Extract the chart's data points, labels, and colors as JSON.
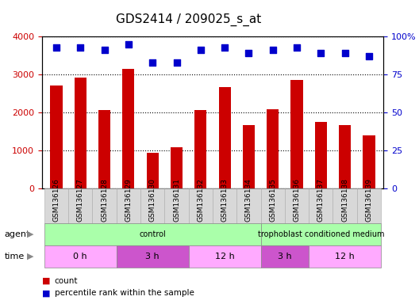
{
  "title": "GDS2414 / 209025_s_at",
  "samples": [
    "GSM136126",
    "GSM136127",
    "GSM136128",
    "GSM136129",
    "GSM136130",
    "GSM136131",
    "GSM136132",
    "GSM136133",
    "GSM136134",
    "GSM136135",
    "GSM136136",
    "GSM136137",
    "GSM136138",
    "GSM136139"
  ],
  "counts": [
    2700,
    2920,
    2060,
    3150,
    930,
    1080,
    2060,
    2660,
    1670,
    2080,
    2860,
    1760,
    1660,
    1390
  ],
  "percentile_ranks": [
    93,
    93,
    91,
    95,
    83,
    83,
    91,
    93,
    89,
    91,
    93,
    89,
    89,
    87
  ],
  "bar_color": "#cc0000",
  "dot_color": "#0000cc",
  "ylim_left": [
    0,
    4000
  ],
  "ylim_right": [
    0,
    100
  ],
  "yticks_left": [
    0,
    1000,
    2000,
    3000,
    4000
  ],
  "ytick_labels_left": [
    "0",
    "1000",
    "2000",
    "3000",
    "4000"
  ],
  "yticks_right": [
    0,
    25,
    50,
    75,
    100
  ],
  "ytick_labels_right": [
    "0",
    "25",
    "50",
    "75",
    "100%"
  ],
  "agent_groups": [
    {
      "label": "control",
      "start": 0,
      "end": 8,
      "color": "#aaffaa"
    },
    {
      "label": "trophoblast conditioned medium",
      "start": 9,
      "end": 13,
      "color": "#aaffaa"
    }
  ],
  "time_groups": [
    {
      "label": "0 h",
      "start": 0,
      "end": 2,
      "color": "#ffaaff"
    },
    {
      "label": "3 h",
      "start": 3,
      "end": 5,
      "color": "#cc55cc"
    },
    {
      "label": "12 h",
      "start": 6,
      "end": 8,
      "color": "#ffaaff"
    },
    {
      "label": "3 h",
      "start": 9,
      "end": 10,
      "color": "#cc55cc"
    },
    {
      "label": "12 h",
      "start": 11,
      "end": 13,
      "color": "#ffaaff"
    }
  ],
  "legend_count_color": "#cc0000",
  "legend_dot_color": "#0000cc",
  "title_fontsize": 11,
  "tick_fontsize": 8
}
